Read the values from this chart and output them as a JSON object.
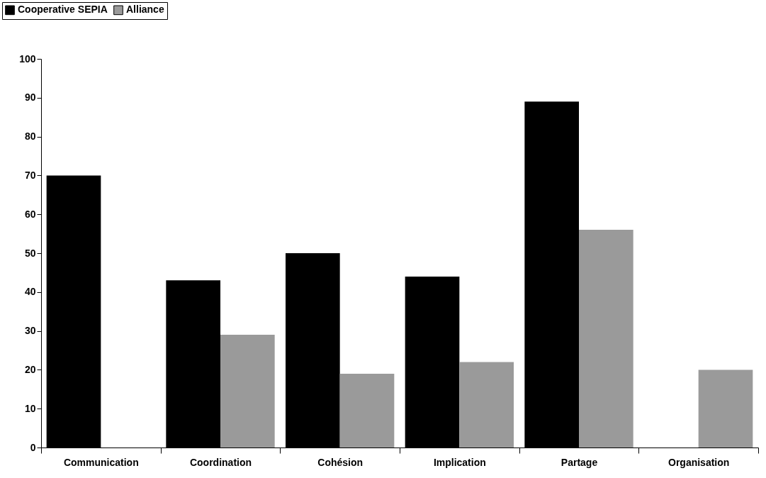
{
  "chart_data": {
    "type": "bar",
    "categories": [
      "Communication",
      "Coordination",
      "Cohésion",
      "Implication",
      "Partage",
      "Organisation"
    ],
    "series": [
      {
        "name": "Cooperative SEPIA",
        "color": "#000000",
        "values": [
          70,
          43,
          50,
          44,
          89,
          null
        ]
      },
      {
        "name": "Alliance",
        "color": "#9a9a9a",
        "values": [
          null,
          29,
          19,
          22,
          56,
          20
        ]
      }
    ],
    "ylim": [
      0,
      100
    ],
    "yticks": [
      0,
      10,
      20,
      30,
      40,
      50,
      60,
      70,
      80,
      90,
      100
    ],
    "grid": false,
    "legend": "top left"
  }
}
